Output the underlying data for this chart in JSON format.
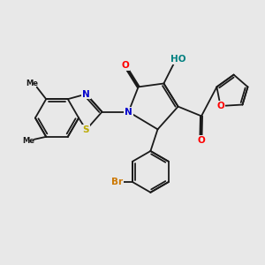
{
  "bg_color": "#e8e8e8",
  "bond_color": "#1a1a1a",
  "bond_lw": 1.3,
  "atom_colors": {
    "N": "#0000cc",
    "O": "#ff0000",
    "S": "#bbaa00",
    "Br": "#cc7700",
    "HO": "#008080",
    "C": "#1a1a1a"
  },
  "font_size": 7.5,
  "fig_bg": "#e8e8e8"
}
